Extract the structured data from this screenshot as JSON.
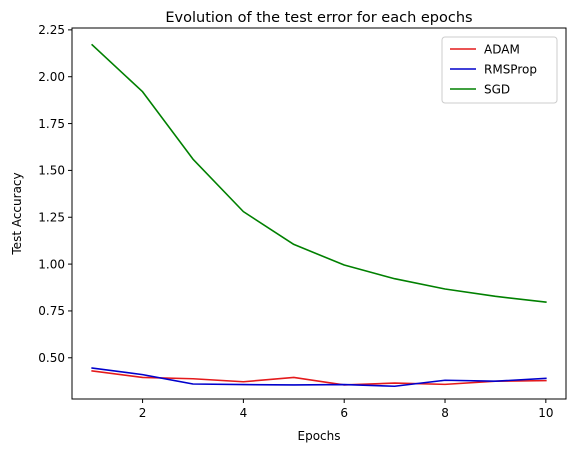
{
  "chart_data": {
    "type": "line",
    "title": "Evolution of the test error for each epochs",
    "xlabel": "Epochs",
    "ylabel": "Test Accuracy",
    "xlim": [
      0.6,
      10.4
    ],
    "ylim": [
      0.28,
      2.26
    ],
    "xticks": [
      2,
      4,
      6,
      8,
      10
    ],
    "xtick_labels": [
      "2",
      "4",
      "6",
      "8",
      "10"
    ],
    "yticks": [
      0.5,
      0.75,
      1.0,
      1.25,
      1.5,
      1.75,
      2.0,
      2.25
    ],
    "ytick_labels": [
      "0.50",
      "0.75",
      "1.00",
      "1.25",
      "1.50",
      "1.75",
      "2.00",
      "2.25"
    ],
    "grid": false,
    "legend_position": "top-right",
    "x": [
      1,
      2,
      3,
      4,
      5,
      6,
      7,
      8,
      9,
      10
    ],
    "series": [
      {
        "name": "ADAM",
        "color": "#e41a1c",
        "values": [
          0.43,
          0.395,
          0.388,
          0.372,
          0.395,
          0.355,
          0.365,
          0.358,
          0.375,
          0.378
        ]
      },
      {
        "name": "RMSProp",
        "color": "#0000cc",
        "values": [
          0.445,
          0.41,
          0.36,
          0.357,
          0.355,
          0.357,
          0.348,
          0.38,
          0.375,
          0.39
        ]
      },
      {
        "name": "SGD",
        "color": "#008000",
        "values": [
          2.17,
          1.92,
          1.56,
          1.28,
          1.105,
          0.995,
          0.922,
          0.867,
          0.828,
          0.797
        ]
      }
    ]
  }
}
